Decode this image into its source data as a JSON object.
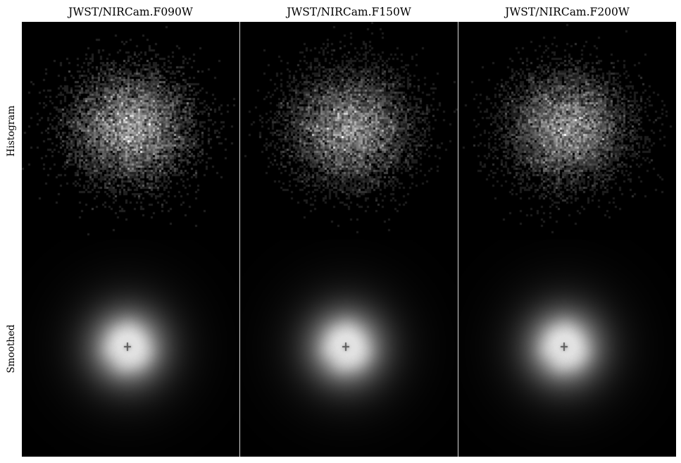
{
  "chart_data": {
    "type": "heatmap",
    "columns": [
      "JWST/NIRCam.F090W",
      "JWST/NIRCam.F150W",
      "JWST/NIRCam.F200W"
    ],
    "rows": [
      "Histogram",
      "Smoothed"
    ],
    "colormap": "grayscale",
    "background_color": "#000000",
    "panels": [
      {
        "column": "JWST/NIRCam.F090W",
        "row": "Histogram",
        "style": "pixelated-noise"
      },
      {
        "column": "JWST/NIRCam.F150W",
        "row": "Histogram",
        "style": "pixelated-noise"
      },
      {
        "column": "JWST/NIRCam.F200W",
        "row": "Histogram",
        "style": "pixelated-noise"
      },
      {
        "column": "JWST/NIRCam.F090W",
        "row": "Smoothed",
        "style": "smooth-blob"
      },
      {
        "column": "JWST/NIRCam.F150W",
        "row": "Smoothed",
        "style": "smooth-blob"
      },
      {
        "column": "JWST/NIRCam.F200W",
        "row": "Smoothed",
        "style": "smooth-blob"
      }
    ]
  }
}
